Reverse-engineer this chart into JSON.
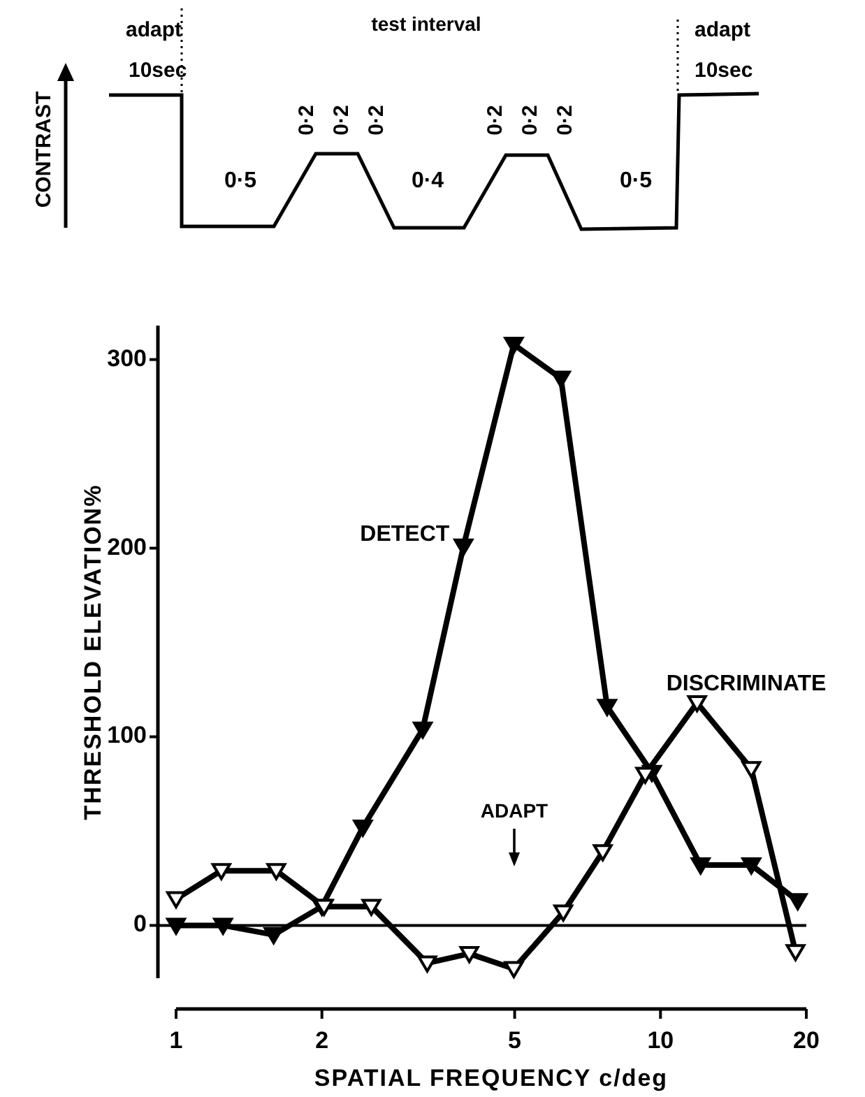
{
  "chart_data": {
    "type": "line",
    "xlabel": "SPATIAL FREQUENCY  c/deg",
    "ylabel": "THRESHOLD ELEVATION%",
    "log": "x",
    "xlim": [
      1,
      20
    ],
    "xticks": [
      1,
      2,
      5,
      10,
      20
    ],
    "ylim": [
      -28,
      318
    ],
    "yticks": [
      0,
      100,
      200,
      300
    ],
    "grid": false,
    "marker": "triangle",
    "line_style": "solid",
    "series": [
      {
        "name": "DETECT",
        "color": "#000000",
        "x": [
          1,
          1.25,
          1.59,
          2.0,
          2.43,
          3.23,
          3.92,
          4.98,
          6.23,
          7.76,
          9.6,
          12.1,
          15.4,
          19.2
        ],
        "values": [
          0,
          0,
          -5,
          10,
          52,
          104,
          201,
          308,
          290,
          116,
          81,
          32,
          32,
          13
        ]
      },
      {
        "name": "DISCRIMINATE",
        "color": "#000000",
        "x": [
          1.0,
          1.24,
          1.61,
          2.02,
          2.53,
          3.3,
          4.03,
          4.98,
          6.3,
          7.6,
          9.3,
          11.9,
          15.4,
          19
        ],
        "values": [
          14,
          29,
          29,
          10,
          10,
          -20,
          -15,
          -23,
          7,
          39,
          80,
          118,
          83,
          -14
        ]
      }
    ],
    "ref_lines": [
      {
        "axis": "y",
        "value": 0,
        "color": "#000000"
      }
    ],
    "annotations": [
      "adapt",
      "10sec",
      "test  interval",
      "0·5",
      "0·2",
      "0·2",
      "0·2",
      "0·4",
      "0·2",
      "0·2",
      "0·2",
      "0·5",
      "adapt",
      "10sec",
      "CONTRAST",
      "ADAPT"
    ]
  }
}
